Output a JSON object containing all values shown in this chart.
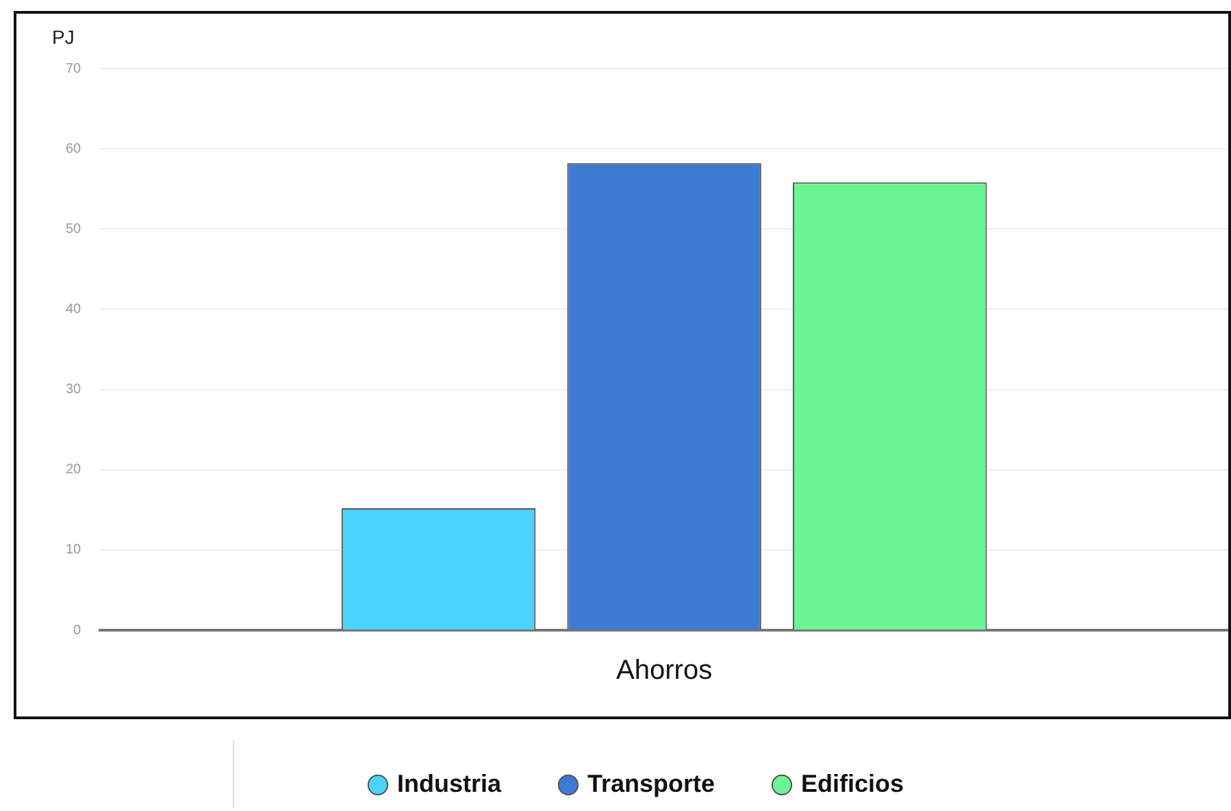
{
  "chart_data": {
    "type": "bar",
    "ylabel": "PJ",
    "categories": [
      "Ahorros"
    ],
    "series": [
      {
        "name": "Industria",
        "color": "#4bd3fe",
        "values": [
          15.2
        ]
      },
      {
        "name": "Transporte",
        "color": "#3e7ad3",
        "values": [
          58.2
        ]
      },
      {
        "name": "Edificios",
        "color": "#6cf593",
        "values": [
          55.8
        ]
      }
    ],
    "ylim": [
      0,
      70
    ],
    "yticks": [
      0,
      10,
      20,
      30,
      40,
      50,
      60,
      70
    ],
    "grid": "y",
    "legend": "bottom"
  }
}
